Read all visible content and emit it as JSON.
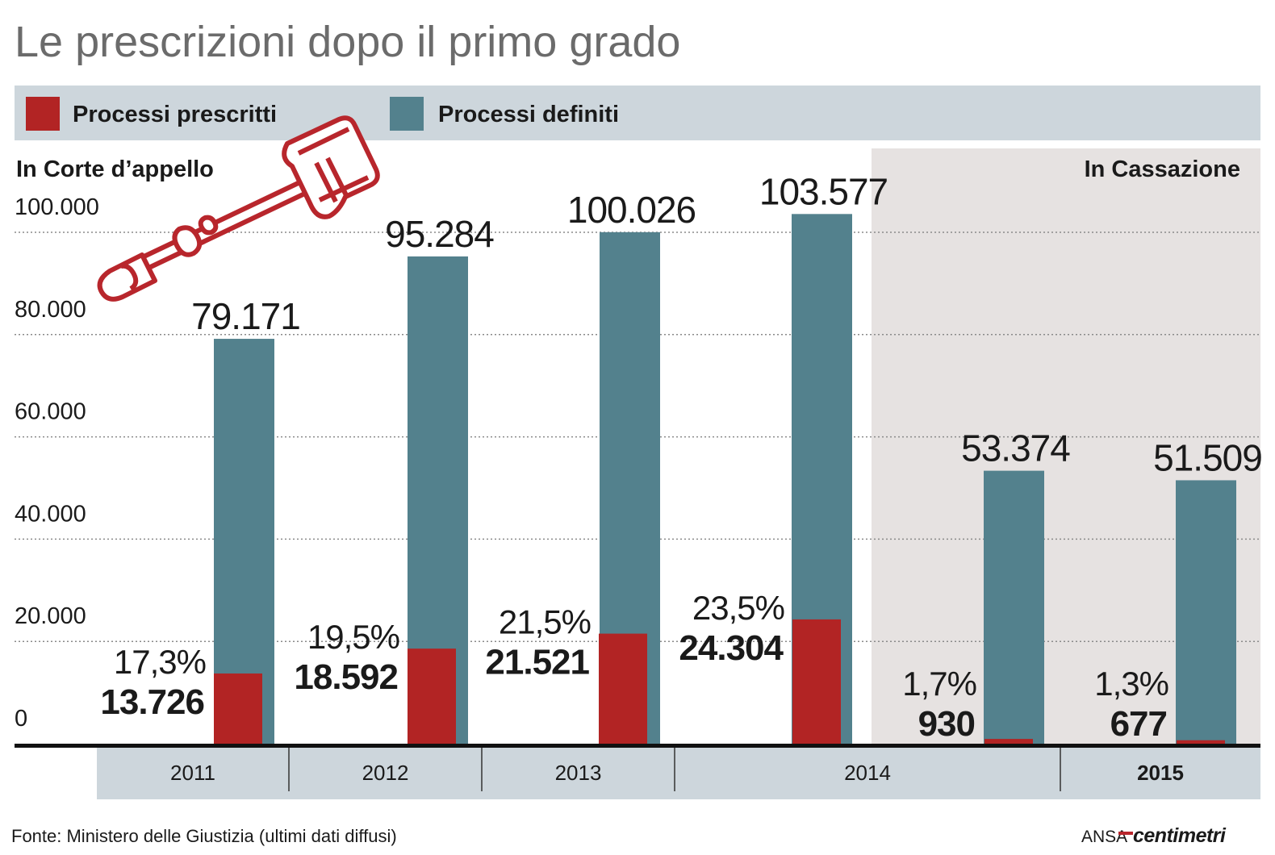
{
  "title": "Le prescrizioni dopo il primo grado",
  "legend": [
    {
      "label": "Processi prescritti",
      "color": "#b22424"
    },
    {
      "label": "Processi definiti",
      "color": "#53818d"
    }
  ],
  "section_left": "In Corte d’appello",
  "section_right": "In Cassazione",
  "illustration": "gavel-icon",
  "source": "Fonte: Ministero delle Giustizia (ultimi dati diffusi)",
  "credit": {
    "ansa": "ANSA",
    "brand": "centimetri"
  },
  "colors": {
    "prescritti": "#b22424",
    "definiti": "#53818d",
    "band": "#cdd6dc",
    "cassazione_bg": "#e6e2e1",
    "text": "#1a1a1a",
    "title": "#6b6b6b"
  },
  "x_groups": [
    {
      "label": "2011",
      "bold": false
    },
    {
      "label": "2012",
      "bold": false
    },
    {
      "label": "2013",
      "bold": false
    },
    {
      "label": "2014",
      "bold": false
    },
    {
      "label": "2015",
      "bold": true
    }
  ],
  "chart_data": {
    "type": "bar",
    "categories": [
      "2011",
      "2012",
      "2013",
      "2014",
      "2014",
      "2015"
    ],
    "courts": [
      "In Corte d’appello",
      "In Corte d’appello",
      "In Corte d’appello",
      "In Corte d’appello",
      "In Cassazione",
      "In Cassazione"
    ],
    "series": [
      {
        "name": "Processi prescritti",
        "values": [
          13726,
          18592,
          21521,
          24304,
          930,
          677
        ],
        "labels": [
          "13.726",
          "18.592",
          "21.521",
          "24.304",
          "930",
          "677"
        ]
      },
      {
        "name": "Processi definiti",
        "values": [
          79171,
          95284,
          100026,
          103577,
          53374,
          51509
        ],
        "labels": [
          "79.171",
          "95.284",
          "100.026",
          "103.577",
          "53.374",
          "51.509"
        ]
      }
    ],
    "percentages": [
      "17,3%",
      "19,5%",
      "21,5%",
      "23,5%",
      "1,7%",
      "1,3%"
    ],
    "y_ticks": [
      0,
      20000,
      40000,
      60000,
      80000,
      100000
    ],
    "y_tick_labels": [
      "0",
      "20.000",
      "40.000",
      "60.000",
      "80.000",
      "100.000"
    ],
    "ylim": [
      0,
      100000
    ],
    "grid": true,
    "legend_position": "top"
  }
}
